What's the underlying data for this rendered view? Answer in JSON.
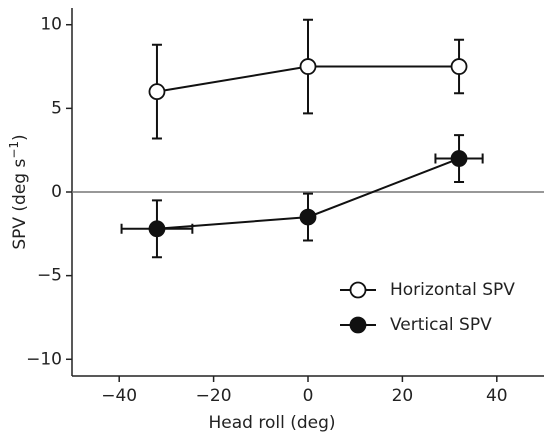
{
  "chart_data": {
    "type": "errorbar",
    "xlabel": "Head roll (deg)",
    "ylabel": [
      "SPV (deg s",
      "−1",
      ")"
    ],
    "xlim": [
      -50,
      50
    ],
    "ylim": [
      -11,
      11
    ],
    "xticks": [
      {
        "value": -40,
        "label": "−40"
      },
      {
        "value": -20,
        "label": "−20"
      },
      0,
      20,
      40
    ],
    "yticks": [
      {
        "value": -10,
        "label": "−10"
      },
      {
        "value": -5,
        "label": "−5"
      },
      0,
      5,
      10
    ],
    "zero_line": true,
    "legend": "lower right",
    "series": [
      {
        "name": "Horizontal SPV",
        "color": "#111111",
        "marker_fill": "#ffffff",
        "x": [
          -32,
          0,
          32
        ],
        "values": [
          6.0,
          7.5,
          7.5
        ],
        "yerr": [
          2.8,
          2.8,
          1.6
        ]
      },
      {
        "name": "Vertical SPV",
        "color": "#111111",
        "marker_fill": "#111111",
        "x": [
          -32,
          0,
          32
        ],
        "values": [
          -2.2,
          -1.5,
          2.0
        ],
        "yerr": [
          1.7,
          1.4,
          1.4
        ],
        "xerr": [
          7.5,
          0,
          5
        ]
      }
    ]
  }
}
